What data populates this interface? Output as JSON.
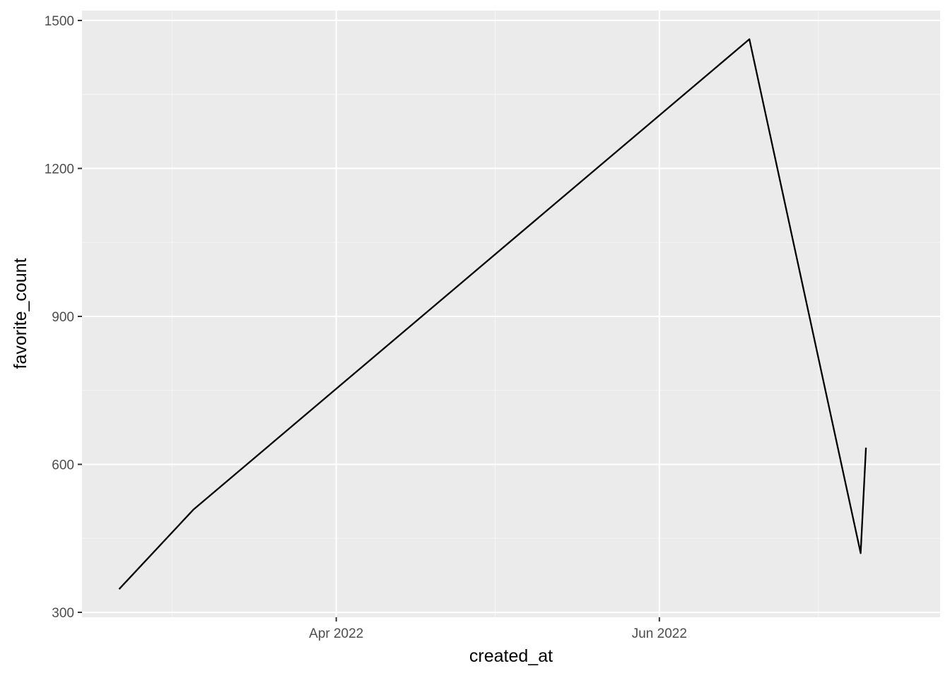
{
  "chart_data": {
    "type": "line",
    "title": "",
    "xlabel": "created_at",
    "ylabel": "favorite_count",
    "x_axis_type": "date",
    "xlim": [
      "2022-02-12",
      "2022-07-24"
    ],
    "ylim": [
      290,
      1520
    ],
    "x_ticks": [
      {
        "date": "2022-04-01",
        "label": "Apr 2022"
      },
      {
        "date": "2022-06-01",
        "label": "Jun 2022"
      }
    ],
    "x_minor_ticks": [
      "2022-03-01",
      "2022-05-01",
      "2022-07-01"
    ],
    "y_ticks": [
      300,
      600,
      900,
      1200,
      1500
    ],
    "y_minor_ticks": [
      450,
      750,
      1050,
      1350
    ],
    "grid": true,
    "legend": "none",
    "series": [
      {
        "color": "#000000",
        "points": [
          {
            "x": "2022-02-19",
            "y": 347
          },
          {
            "x": "2022-03-05",
            "y": 508
          },
          {
            "x": "2022-06-18",
            "y": 1462
          },
          {
            "x": "2022-07-09",
            "y": 420
          },
          {
            "x": "2022-07-10",
            "y": 634
          }
        ]
      }
    ],
    "colors": {
      "panel_background": "#ebebeb",
      "grid_major": "#ffffff",
      "grid_minor": "#f5f5f5",
      "line": "#000000",
      "tick_text": "#4d4d4d",
      "axis_title": "#000000"
    }
  }
}
